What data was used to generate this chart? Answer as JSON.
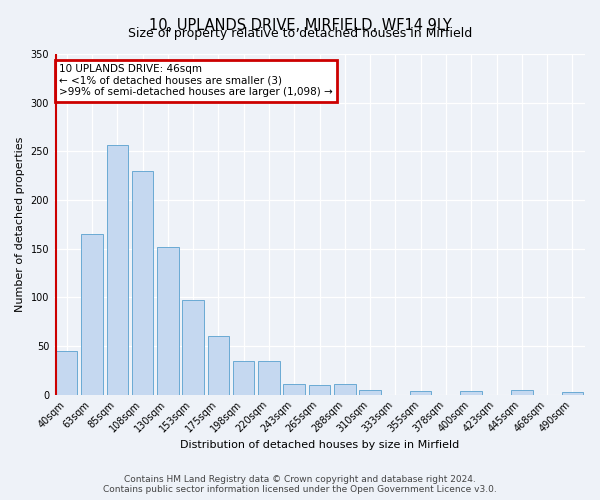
{
  "title": "10, UPLANDS DRIVE, MIRFIELD, WF14 9LY",
  "subtitle": "Size of property relative to detached houses in Mirfield",
  "xlabel": "Distribution of detached houses by size in Mirfield",
  "ylabel": "Number of detached properties",
  "bar_labels": [
    "40sqm",
    "63sqm",
    "85sqm",
    "108sqm",
    "130sqm",
    "153sqm",
    "175sqm",
    "198sqm",
    "220sqm",
    "243sqm",
    "265sqm",
    "288sqm",
    "310sqm",
    "333sqm",
    "355sqm",
    "378sqm",
    "400sqm",
    "423sqm",
    "445sqm",
    "468sqm",
    "490sqm"
  ],
  "bar_values": [
    45,
    165,
    257,
    230,
    152,
    97,
    60,
    35,
    35,
    11,
    10,
    11,
    5,
    0,
    4,
    0,
    4,
    0,
    5,
    0,
    3
  ],
  "bar_color": "#c5d8f0",
  "bar_edge_color": "#6aaad4",
  "ylim": [
    0,
    350
  ],
  "yticks": [
    0,
    50,
    100,
    150,
    200,
    250,
    300,
    350
  ],
  "annotation_box_text": "10 UPLANDS DRIVE: 46sqm\n← <1% of detached houses are smaller (3)\n>99% of semi-detached houses are larger (1,098) →",
  "annotation_box_color": "#ffffff",
  "annotation_box_edge_color": "#cc0000",
  "footer_line1": "Contains HM Land Registry data © Crown copyright and database right 2024.",
  "footer_line2": "Contains public sector information licensed under the Open Government Licence v3.0.",
  "bg_color": "#eef2f8",
  "grid_color": "#ffffff",
  "title_fontsize": 10.5,
  "subtitle_fontsize": 9,
  "axis_label_fontsize": 8,
  "tick_fontsize": 7,
  "footer_fontsize": 6.5,
  "annotation_fontsize": 7.5
}
